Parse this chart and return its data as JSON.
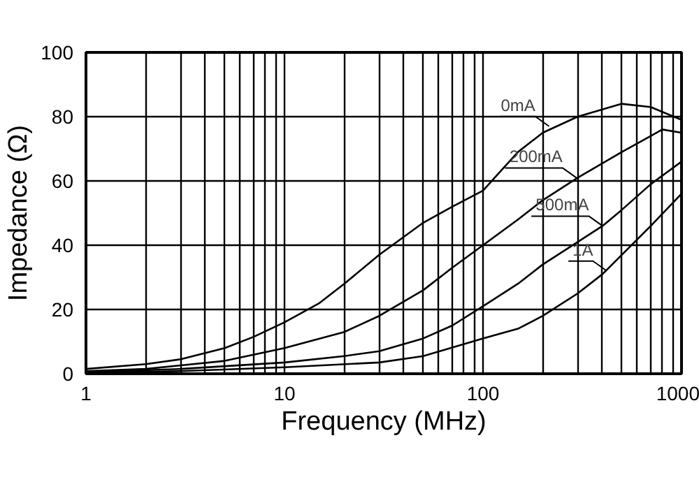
{
  "chart_data": {
    "type": "line",
    "xlabel": "Frequency (MHz)",
    "ylabel": "Impedance (Ω)",
    "log": "x",
    "xlim": [
      1,
      1000
    ],
    "ylim": [
      0,
      100
    ],
    "xticks": [
      1,
      10,
      100,
      1000
    ],
    "yticks": [
      0,
      20,
      40,
      60,
      80,
      100
    ],
    "grid": true,
    "marker": "none",
    "line_style": "solid",
    "series": [
      {
        "color": "#000000",
        "x": [
          1,
          2,
          3,
          5,
          7,
          10,
          15,
          20,
          30,
          50,
          70,
          100,
          150,
          200,
          300,
          500,
          700,
          1000
        ],
        "values": [
          1.5,
          3,
          4.5,
          8,
          11.5,
          16,
          22,
          28,
          37,
          47,
          52,
          57,
          69,
          75,
          80,
          84,
          83,
          79
        ]
      },
      {
        "color": "#000000",
        "x": [
          1,
          2,
          5,
          10,
          20,
          30,
          50,
          70,
          100,
          150,
          200,
          300,
          500,
          700,
          800,
          1000
        ],
        "values": [
          0.8,
          1.5,
          4,
          8,
          13,
          18,
          26,
          33,
          40,
          48,
          54,
          61,
          69,
          74,
          76,
          75
        ]
      },
      {
        "color": "#000000",
        "x": [
          1,
          3,
          10,
          20,
          30,
          50,
          70,
          100,
          150,
          200,
          300,
          400,
          500,
          700,
          1000
        ],
        "values": [
          0.5,
          1.5,
          3.5,
          5.5,
          7,
          11,
          15,
          21,
          28,
          34,
          41,
          46,
          51,
          59,
          66
        ]
      },
      {
        "color": "#000000",
        "x": [
          1,
          3,
          10,
          30,
          50,
          100,
          150,
          200,
          300,
          400,
          500,
          700,
          1000
        ],
        "values": [
          0.3,
          0.8,
          2,
          3.5,
          5.5,
          11,
          14,
          18,
          25,
          31,
          37,
          46,
          56
        ]
      }
    ],
    "annotations": [
      {
        "text": "0mA",
        "x": 215,
        "y": 77
      },
      {
        "text": "200mA",
        "x": 295,
        "y": 61
      },
      {
        "text": "500mA",
        "x": 400,
        "y": 46
      },
      {
        "text": "1A",
        "x": 420,
        "y": 32
      }
    ]
  }
}
